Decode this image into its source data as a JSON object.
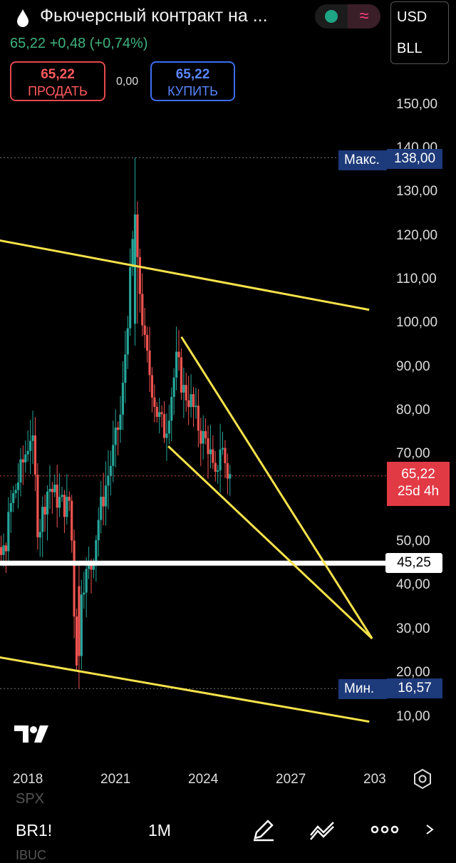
{
  "header": {
    "title": "Фьючерсный контракт на ...",
    "last_price": "65,22",
    "change": "+0,48 (+0,74%)",
    "sell_price": "65,22",
    "sell_label": "ПРОДАТЬ",
    "spread": "0,00",
    "buy_price": "65,22",
    "buy_label": "КУПИТЬ",
    "currency": "USD",
    "unit": "BLL"
  },
  "chart_data": {
    "type": "candlestick",
    "y_axis": {
      "ticks": [
        "150,00",
        "140,00",
        "130,00",
        "120,00",
        "110,00",
        "100,00",
        "90,00",
        "80,00",
        "70,00",
        "50,00",
        "40,00",
        "30,00",
        "20,00",
        "10,00"
      ],
      "range": [
        5,
        160
      ]
    },
    "x_axis": {
      "ticks": [
        "2018",
        "2021",
        "2024",
        "2027",
        "203"
      ]
    },
    "max_label": "Макс.",
    "max_value": "138,00",
    "min_label": "Мин.",
    "min_value": "16,57",
    "current_price": "65,22",
    "countdown": "25d 4h",
    "level_line": "45,25",
    "trendlines": [
      {
        "from": [
          2016.0,
          121.0
        ],
        "to": [
          2030.2,
          103.2
        ]
      },
      {
        "from": [
          2016.0,
          25.5
        ],
        "to": [
          2030.2,
          9.0
        ]
      },
      {
        "from": [
          2023.77,
          97.0
        ],
        "to": [
          2030.3,
          28.0
        ]
      },
      {
        "from": [
          2023.32,
          72.0
        ],
        "to": [
          2030.3,
          28.0
        ]
      }
    ]
  },
  "bottom": {
    "symbol": "BR1!",
    "interval": "1M",
    "ghost_top": "SPX",
    "ghost_bottom": "IBUC"
  },
  "colors": {
    "up": "#26a69a",
    "down": "#ef5350",
    "trend": "#f7e24a",
    "tag": "#1d3a7a"
  }
}
